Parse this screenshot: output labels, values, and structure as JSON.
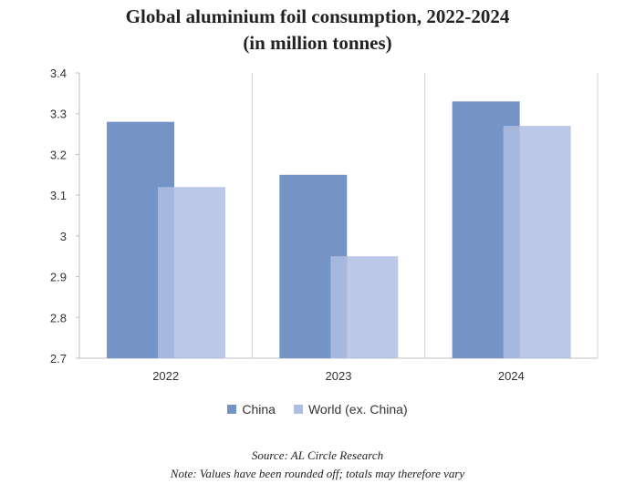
{
  "chart_data": {
    "type": "bar",
    "title": "Global aluminium foil consumption, 2022-2024",
    "subtitle": "(in million tonnes)",
    "categories": [
      "2022",
      "2023",
      "2024"
    ],
    "series": [
      {
        "name": "China",
        "values": [
          3.28,
          3.15,
          3.33
        ],
        "color": "#7494c6"
      },
      {
        "name": "World (ex. China)",
        "values": [
          3.12,
          2.95,
          3.27
        ],
        "color": "#b0bee3"
      }
    ],
    "ylim": [
      2.7,
      3.4
    ],
    "yticks": [
      {
        "value": 2.7,
        "label": "2.7"
      },
      {
        "value": 2.8,
        "label": "2.8"
      },
      {
        "value": 2.9,
        "label": "2.9"
      },
      {
        "value": 3.0,
        "label": "3"
      },
      {
        "value": 3.1,
        "label": "3.1"
      },
      {
        "value": 3.2,
        "label": "3.2"
      },
      {
        "value": 3.3,
        "label": "3.3"
      },
      {
        "value": 3.4,
        "label": "3.4"
      }
    ],
    "legend_position": "bottom",
    "grid": "vertical category separators"
  },
  "footnotes": {
    "source": "Source: AL Circle Research",
    "note": "Note: Values have been rounded off; totals may therefore vary"
  }
}
